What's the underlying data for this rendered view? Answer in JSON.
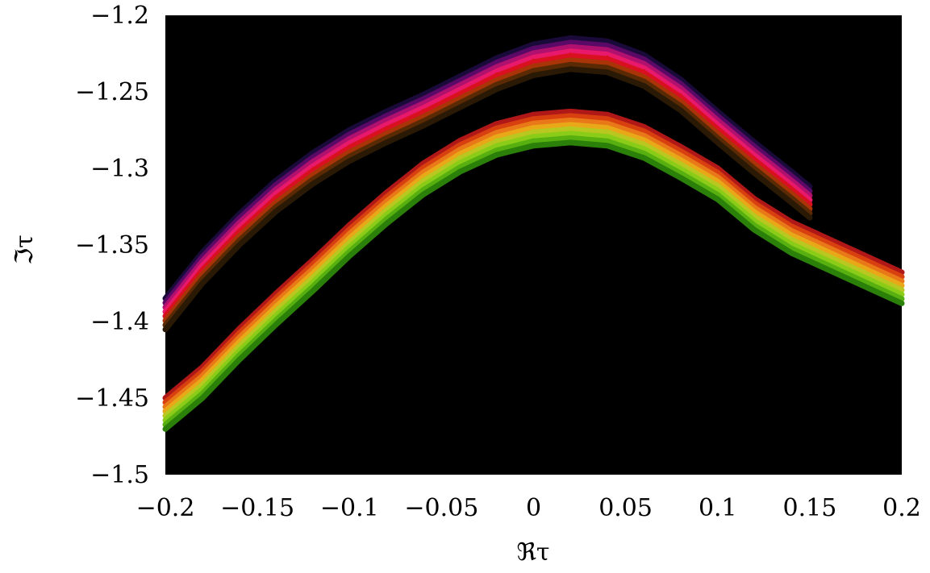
{
  "chart_data": {
    "type": "scatter",
    "title": "",
    "xlabel": "ℜτ",
    "ylabel": "ℑτ",
    "xlim": [
      -0.2,
      0.2
    ],
    "ylim": [
      -1.5,
      -1.2
    ],
    "grid": false,
    "background": "#000000",
    "x_ticks": [
      "−0.2",
      "−0.15",
      "−0.1",
      "−0.05",
      "0",
      "0.05",
      "0.1",
      "0.15",
      "0.2"
    ],
    "x_tick_values": [
      -0.2,
      -0.15,
      -0.1,
      -0.05,
      0,
      0.05,
      0.1,
      0.15,
      0.2
    ],
    "y_ticks": [
      "−1.2",
      "−1.25",
      "−1.3",
      "−1.35",
      "−1.4",
      "−1.45",
      "−1.5"
    ],
    "y_tick_values": [
      -1.2,
      -1.25,
      -1.3,
      -1.35,
      -1.4,
      -1.45,
      -1.5
    ],
    "series": [
      {
        "colors": [
          "#1a0a3a",
          "#5a0a66",
          "#b0106e",
          "#e8186a",
          "#d81020",
          "#a83408",
          "#5a2a05",
          "#2a1a05"
        ],
        "points": [
          [
            -0.2,
            -1.395
          ],
          [
            -0.18,
            -1.365
          ],
          [
            -0.16,
            -1.34
          ],
          [
            -0.14,
            -1.318
          ],
          [
            -0.12,
            -1.3
          ],
          [
            -0.1,
            -1.285
          ],
          [
            -0.08,
            -1.273
          ],
          [
            -0.06,
            -1.262
          ],
          [
            -0.04,
            -1.25
          ],
          [
            -0.02,
            -1.238
          ],
          [
            0.0,
            -1.229
          ],
          [
            0.02,
            -1.225
          ],
          [
            0.04,
            -1.227
          ],
          [
            0.06,
            -1.236
          ],
          [
            0.08,
            -1.252
          ],
          [
            0.1,
            -1.273
          ],
          [
            0.12,
            -1.293
          ],
          [
            0.14,
            -1.312
          ],
          [
            0.15,
            -1.322
          ]
        ]
      },
      {
        "colors": [
          "#b01818",
          "#d84010",
          "#e87818",
          "#e8a818",
          "#b8c820",
          "#8acc18",
          "#58b010",
          "#2a8008"
        ],
        "points": [
          [
            -0.2,
            -1.46
          ],
          [
            -0.18,
            -1.44
          ],
          [
            -0.16,
            -1.415
          ],
          [
            -0.14,
            -1.392
          ],
          [
            -0.12,
            -1.37
          ],
          [
            -0.1,
            -1.347
          ],
          [
            -0.08,
            -1.326
          ],
          [
            -0.06,
            -1.307
          ],
          [
            -0.04,
            -1.292
          ],
          [
            -0.02,
            -1.281
          ],
          [
            0.0,
            -1.275
          ],
          [
            0.02,
            -1.273
          ],
          [
            0.04,
            -1.275
          ],
          [
            0.06,
            -1.283
          ],
          [
            0.08,
            -1.296
          ],
          [
            0.1,
            -1.31
          ],
          [
            0.12,
            -1.33
          ],
          [
            0.14,
            -1.345
          ],
          [
            0.16,
            -1.356
          ],
          [
            0.18,
            -1.367
          ],
          [
            0.2,
            -1.378
          ]
        ]
      }
    ]
  }
}
